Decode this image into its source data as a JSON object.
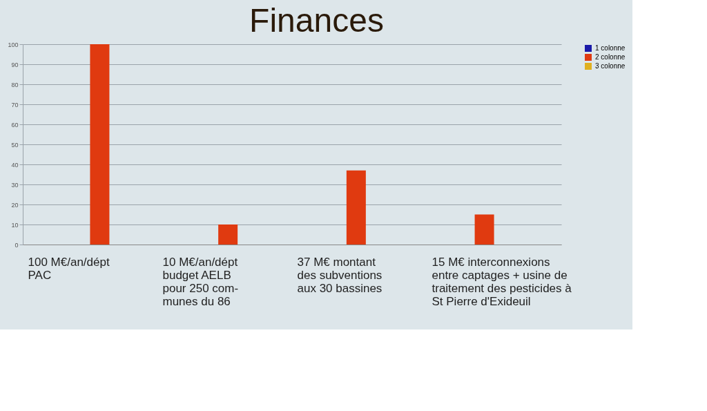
{
  "chart_data": {
    "type": "bar",
    "title": "Finances",
    "categories": [
      null,
      null,
      null,
      null
    ],
    "series": [
      {
        "name": "1 colonne",
        "color": "#1a1aa8",
        "values": [
          0,
          0,
          0,
          0
        ]
      },
      {
        "name": "2 colonne",
        "color": "#e03a10",
        "values": [
          100,
          10,
          37,
          15
        ]
      },
      {
        "name": "3 colonne",
        "color": "#e0b020",
        "values": [
          0,
          0,
          0,
          0
        ]
      }
    ],
    "ylim": [
      0,
      100
    ],
    "yticks": [
      0,
      10,
      20,
      30,
      40,
      50,
      60,
      70,
      80,
      90,
      100
    ],
    "grid": "y",
    "legend": "right",
    "tick_labels": "y",
    "annotations": [
      "100 M€/an/dépt\nPAC",
      "10 M€/an/dépt\nbudget AELB\npour 250 com-\nmunes du 86",
      "37 M€ montant\ndes subventions\naux 30 bassines",
      "15 M€  interconnexions\nentre captages + usine de\ntraitement des pesticides à\nSt Pierre d'Exideuil"
    ]
  }
}
